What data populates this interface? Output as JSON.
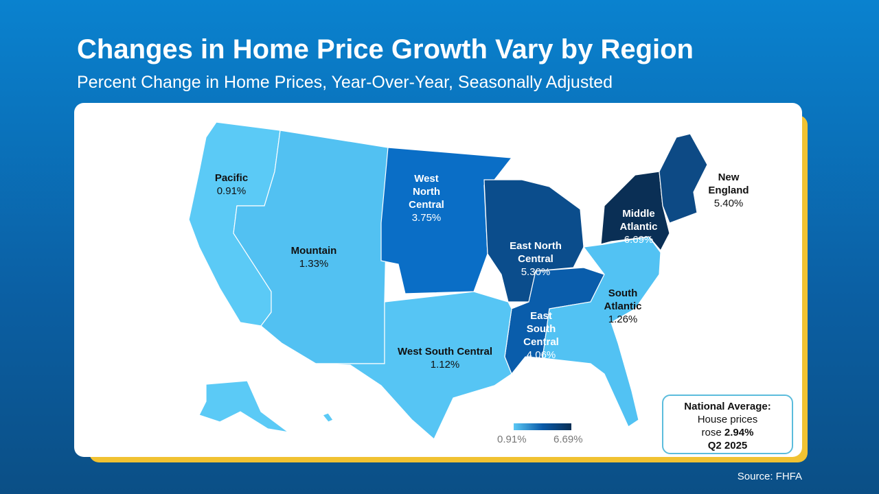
{
  "title": "Changes in Home Price Growth Vary by Region",
  "subtitle": "Percent Change in Home Prices, Year-Over-Year, Seasonally Adjusted",
  "regions": [
    {
      "name": "Pacific",
      "value": "0.91%",
      "color": "#5bcaf6"
    },
    {
      "name": "Mountain",
      "value": "1.33%",
      "color": "#52c1f2"
    },
    {
      "name": "West North Central",
      "value": "3.75%",
      "color": "#0a6ec6"
    },
    {
      "name": "East North Central",
      "value": "5.30%",
      "color": "#0b4d8c"
    },
    {
      "name": "Middle Atlantic",
      "value": "6.69%",
      "color": "#0a2f55"
    },
    {
      "name": "New England",
      "value": "5.40%",
      "color": "#0d4a85"
    },
    {
      "name": "East South Central",
      "value": "4.06%",
      "color": "#0a5dab"
    },
    {
      "name": "South Atlantic",
      "value": "1.26%",
      "color": "#52c2f3"
    },
    {
      "name": "West South Central",
      "value": "1.12%",
      "color": "#56c5f4"
    }
  ],
  "labels": {
    "pacific": [
      "Pacific",
      "0.91%"
    ],
    "mountain": [
      "Mountain",
      "1.33%"
    ],
    "wnc": [
      "West",
      "North",
      "Central",
      "3.75%"
    ],
    "enc": [
      "East North",
      "Central",
      "5.30%"
    ],
    "ma": [
      "Middle",
      "Atlantic",
      "6.69%"
    ],
    "ne": [
      "New",
      "England",
      "5.40%"
    ],
    "esc": [
      "East",
      "South",
      "Central",
      "4.06%"
    ],
    "sa": [
      "South",
      "Atlantic",
      "1.26%"
    ],
    "wsc": [
      "West South Central",
      "1.12%"
    ]
  },
  "legend": {
    "min": "0.91%",
    "max": "6.69%"
  },
  "national": {
    "heading": "National Average:",
    "line1": "House prices",
    "line2_pre": "rose ",
    "line2_value": "2.94%",
    "period": "Q2 2025"
  },
  "source": "Source: FHFA"
}
